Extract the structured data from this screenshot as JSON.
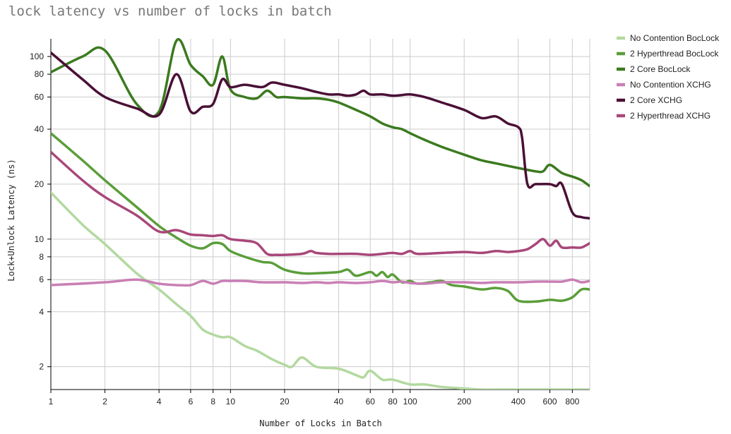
{
  "chart_data": {
    "type": "line",
    "title": "lock latency vs number of locks in batch",
    "xlabel": "Number of Locks in Batch",
    "ylabel": "Lock+Unlock Latency (ns)",
    "xscale": "log",
    "yscale": "log",
    "xlim": [
      1,
      1000
    ],
    "ylim": [
      1.5,
      125
    ],
    "grid": true,
    "legend_position": "right",
    "x_ticks": [
      1,
      2,
      4,
      6,
      8,
      10,
      20,
      40,
      60,
      80,
      100,
      200,
      400,
      600,
      800
    ],
    "x_tick_labels": [
      "1",
      "2",
      "4",
      "6",
      "8",
      "10",
      "20",
      "40",
      "60",
      "80",
      "100",
      "200",
      "400",
      "600",
      "800"
    ],
    "y_ticks": [
      2,
      4,
      6,
      8,
      10,
      20,
      40,
      60,
      80,
      100
    ],
    "y_tick_labels": [
      "2",
      "4",
      "6",
      "8",
      "10",
      "20",
      "40",
      "60",
      "80",
      "100"
    ],
    "series": [
      {
        "name": "No Contention BocLock",
        "color": "#b3d9a0",
        "points": [
          [
            1,
            18
          ],
          [
            1.5,
            12
          ],
          [
            2,
            9.4
          ],
          [
            3,
            6.5
          ],
          [
            4,
            5.3
          ],
          [
            5,
            4.4
          ],
          [
            6,
            3.8
          ],
          [
            7,
            3.2
          ],
          [
            8,
            3
          ],
          [
            9,
            2.9
          ],
          [
            10,
            2.9
          ],
          [
            12,
            2.6
          ],
          [
            14,
            2.45
          ],
          [
            17,
            2.2
          ],
          [
            20,
            2.05
          ],
          [
            22,
            2
          ],
          [
            25,
            2.25
          ],
          [
            30,
            2
          ],
          [
            40,
            1.95
          ],
          [
            50,
            1.8
          ],
          [
            55,
            1.75
          ],
          [
            60,
            1.9
          ],
          [
            70,
            1.7
          ],
          [
            80,
            1.7
          ],
          [
            100,
            1.6
          ],
          [
            120,
            1.6
          ],
          [
            150,
            1.55
          ],
          [
            200,
            1.52
          ],
          [
            250,
            1.5
          ],
          [
            300,
            1.5
          ],
          [
            400,
            1.5
          ],
          [
            500,
            1.5
          ],
          [
            600,
            1.5
          ],
          [
            800,
            1.5
          ],
          [
            1000,
            1.5
          ]
        ]
      },
      {
        "name": "2 Hyperthread BocLock",
        "color": "#5a9e3a",
        "points": [
          [
            1,
            38
          ],
          [
            1.5,
            27
          ],
          [
            2,
            21
          ],
          [
            3,
            15
          ],
          [
            4,
            11.8
          ],
          [
            5,
            10.2
          ],
          [
            6,
            9.2
          ],
          [
            7,
            8.9
          ],
          [
            8,
            9.5
          ],
          [
            9,
            9.4
          ],
          [
            10,
            8.6
          ],
          [
            12,
            8
          ],
          [
            15,
            7.5
          ],
          [
            17,
            7.4
          ],
          [
            20,
            6.8
          ],
          [
            25,
            6.5
          ],
          [
            30,
            6.5
          ],
          [
            40,
            6.6
          ],
          [
            45,
            6.8
          ],
          [
            50,
            6.3
          ],
          [
            60,
            6.6
          ],
          [
            65,
            6.3
          ],
          [
            70,
            6.6
          ],
          [
            75,
            6.2
          ],
          [
            80,
            6.4
          ],
          [
            90,
            5.8
          ],
          [
            100,
            5.9
          ],
          [
            110,
            5.7
          ],
          [
            130,
            5.8
          ],
          [
            150,
            5.9
          ],
          [
            170,
            5.6
          ],
          [
            200,
            5.5
          ],
          [
            250,
            5.3
          ],
          [
            300,
            5.4
          ],
          [
            350,
            5.2
          ],
          [
            400,
            4.6
          ],
          [
            500,
            4.55
          ],
          [
            600,
            4.65
          ],
          [
            700,
            4.6
          ],
          [
            800,
            4.8
          ],
          [
            900,
            5.3
          ],
          [
            1000,
            5.3
          ]
        ]
      },
      {
        "name": "2 Core BocLock",
        "color": "#3b7a1f",
        "points": [
          [
            1,
            82
          ],
          [
            1.5,
            100
          ],
          [
            2,
            108
          ],
          [
            3,
            55
          ],
          [
            4,
            50
          ],
          [
            5,
            122
          ],
          [
            6,
            90
          ],
          [
            7,
            78
          ],
          [
            8,
            70
          ],
          [
            9,
            100
          ],
          [
            10,
            66
          ],
          [
            12,
            60
          ],
          [
            14,
            59
          ],
          [
            16,
            65
          ],
          [
            18,
            60
          ],
          [
            20,
            60
          ],
          [
            25,
            59
          ],
          [
            30,
            59
          ],
          [
            35,
            58
          ],
          [
            40,
            56
          ],
          [
            50,
            51
          ],
          [
            60,
            47
          ],
          [
            70,
            43
          ],
          [
            80,
            41
          ],
          [
            90,
            40
          ],
          [
            100,
            38
          ],
          [
            120,
            35
          ],
          [
            150,
            32
          ],
          [
            200,
            29
          ],
          [
            250,
            27
          ],
          [
            300,
            26
          ],
          [
            400,
            24.5
          ],
          [
            500,
            23.5
          ],
          [
            550,
            23.5
          ],
          [
            600,
            25.5
          ],
          [
            700,
            23
          ],
          [
            800,
            22
          ],
          [
            900,
            21
          ],
          [
            1000,
            19.5
          ]
        ]
      },
      {
        "name": "No Contention XCHG",
        "color": "#c97fb5",
        "points": [
          [
            1,
            5.6
          ],
          [
            2,
            5.8
          ],
          [
            3,
            6
          ],
          [
            4,
            5.7
          ],
          [
            5,
            5.6
          ],
          [
            6,
            5.6
          ],
          [
            7,
            5.9
          ],
          [
            8,
            5.7
          ],
          [
            9,
            5.9
          ],
          [
            10,
            5.9
          ],
          [
            12,
            5.9
          ],
          [
            15,
            5.8
          ],
          [
            20,
            5.8
          ],
          [
            25,
            5.75
          ],
          [
            30,
            5.8
          ],
          [
            35,
            5.75
          ],
          [
            40,
            5.8
          ],
          [
            50,
            5.75
          ],
          [
            60,
            5.8
          ],
          [
            70,
            5.9
          ],
          [
            80,
            5.8
          ],
          [
            90,
            5.85
          ],
          [
            100,
            5.75
          ],
          [
            120,
            5.7
          ],
          [
            150,
            5.8
          ],
          [
            200,
            5.8
          ],
          [
            250,
            5.75
          ],
          [
            300,
            5.8
          ],
          [
            400,
            5.8
          ],
          [
            500,
            5.85
          ],
          [
            600,
            5.85
          ],
          [
            700,
            5.85
          ],
          [
            800,
            6
          ],
          [
            900,
            5.8
          ],
          [
            1000,
            5.9
          ]
        ]
      },
      {
        "name": "2 Core XCHG",
        "color": "#4a1036",
        "points": [
          [
            1,
            105
          ],
          [
            1.5,
            75
          ],
          [
            2,
            60
          ],
          [
            3,
            52
          ],
          [
            4,
            48
          ],
          [
            5,
            80
          ],
          [
            6,
            50
          ],
          [
            7,
            53
          ],
          [
            8,
            55
          ],
          [
            9,
            75
          ],
          [
            10,
            68
          ],
          [
            12,
            70
          ],
          [
            15,
            68
          ],
          [
            17,
            72
          ],
          [
            20,
            70
          ],
          [
            25,
            67
          ],
          [
            30,
            64
          ],
          [
            35,
            62
          ],
          [
            40,
            62
          ],
          [
            45,
            61
          ],
          [
            50,
            62
          ],
          [
            55,
            65
          ],
          [
            60,
            62
          ],
          [
            70,
            62
          ],
          [
            80,
            61
          ],
          [
            90,
            61.5
          ],
          [
            100,
            62
          ],
          [
            120,
            60
          ],
          [
            150,
            56
          ],
          [
            200,
            51
          ],
          [
            250,
            46
          ],
          [
            300,
            47
          ],
          [
            350,
            43
          ],
          [
            400,
            41
          ],
          [
            420,
            36
          ],
          [
            450,
            20
          ],
          [
            500,
            20
          ],
          [
            600,
            20
          ],
          [
            650,
            19.5
          ],
          [
            700,
            20
          ],
          [
            800,
            14
          ],
          [
            900,
            13.2
          ],
          [
            1000,
            13
          ]
        ]
      },
      {
        "name": "2 Hyperthread XCHG",
        "color": "#a8477a",
        "points": [
          [
            1,
            30
          ],
          [
            1.5,
            21
          ],
          [
            2,
            17
          ],
          [
            3,
            13.5
          ],
          [
            4,
            11
          ],
          [
            5,
            11.2
          ],
          [
            6,
            10.6
          ],
          [
            7,
            10.5
          ],
          [
            8,
            10.4
          ],
          [
            9,
            10.5
          ],
          [
            10,
            10
          ],
          [
            12,
            9.8
          ],
          [
            14,
            9.5
          ],
          [
            16,
            8.3
          ],
          [
            18,
            8.2
          ],
          [
            20,
            8.2
          ],
          [
            25,
            8.3
          ],
          [
            28,
            8.6
          ],
          [
            30,
            8.4
          ],
          [
            35,
            8.3
          ],
          [
            40,
            8.3
          ],
          [
            50,
            8.3
          ],
          [
            60,
            8.2
          ],
          [
            70,
            8.3
          ],
          [
            80,
            8.4
          ],
          [
            90,
            8.3
          ],
          [
            100,
            8.6
          ],
          [
            110,
            8.3
          ],
          [
            150,
            8.4
          ],
          [
            200,
            8.5
          ],
          [
            250,
            8.4
          ],
          [
            300,
            8.6
          ],
          [
            350,
            8.5
          ],
          [
            400,
            8.6
          ],
          [
            450,
            8.8
          ],
          [
            500,
            9.4
          ],
          [
            550,
            10
          ],
          [
            600,
            9.2
          ],
          [
            650,
            9.8
          ],
          [
            700,
            9
          ],
          [
            800,
            9
          ],
          [
            900,
            9
          ],
          [
            1000,
            9.5
          ]
        ]
      }
    ]
  }
}
